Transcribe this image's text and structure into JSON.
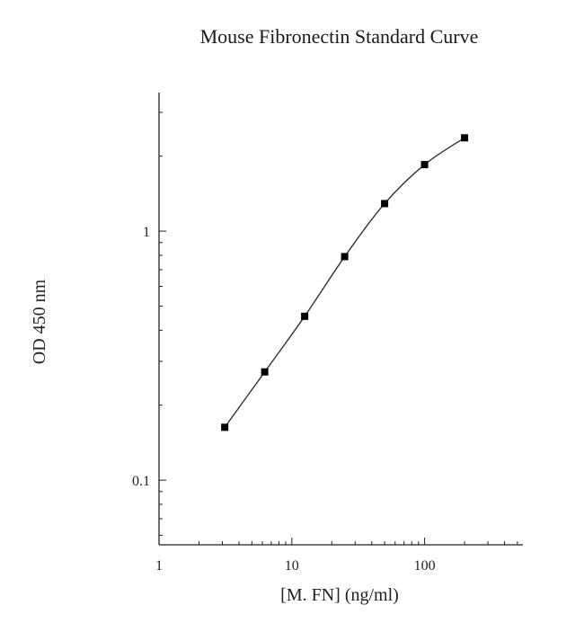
{
  "chart_data": {
    "type": "line",
    "title": "Mouse Fibronectin Standard Curve",
    "xlabel": "[M. FN] (ng/ml)",
    "ylabel": "OD 450 nm",
    "xscale": "log",
    "yscale": "log",
    "xlim": [
      1,
      550
    ],
    "ylim": [
      0.055,
      3.6
    ],
    "xticks": [
      1,
      10,
      100
    ],
    "xtick_labels": [
      "1",
      "10",
      "100"
    ],
    "yticks": [
      0.1,
      1
    ],
    "ytick_labels": [
      "0.1",
      "1"
    ],
    "grid": false,
    "legend": "none",
    "marker": "square",
    "colors": {
      "line": "#333333",
      "marker": "#000000",
      "axis": "#222222"
    },
    "series": [
      {
        "x": [
          3.125,
          6.25,
          12.5,
          25,
          50,
          100,
          200
        ],
        "y": [
          0.163,
          0.272,
          0.455,
          0.79,
          1.29,
          1.85,
          2.37
        ]
      }
    ]
  }
}
